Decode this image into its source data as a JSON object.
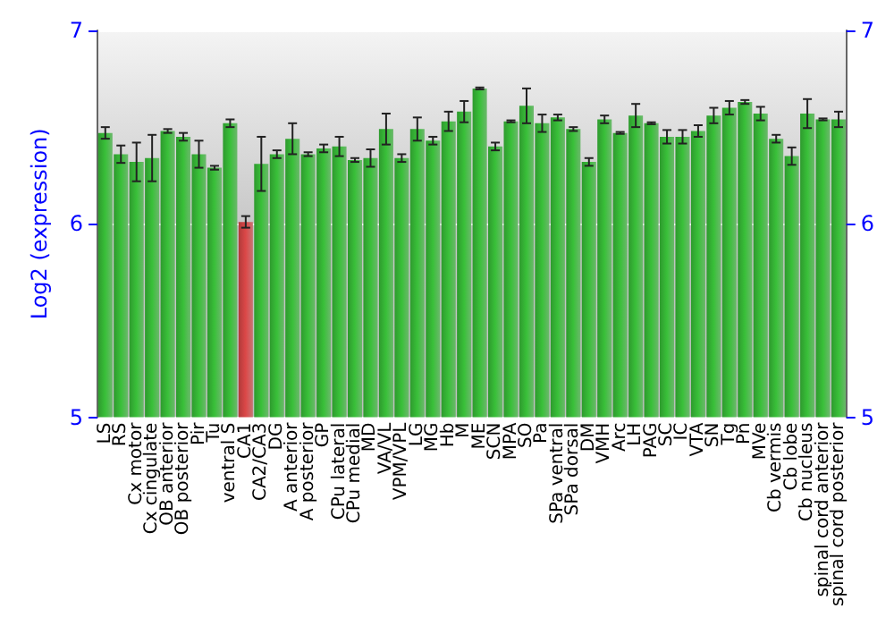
{
  "chart_data": {
    "type": "bar",
    "ylabel": "Log2 (expression)",
    "categories": [
      "LS",
      "RS",
      "Cx motor",
      "Cx cingulate",
      "OB anterior",
      "OB posterior",
      "Pir",
      "Tu",
      "ventral S",
      "CA1",
      "CA2/CA3",
      "DG",
      "A anterior",
      "A posterior",
      "GP",
      "CPu lateral",
      "CPu medial",
      "MD",
      "VA/VL",
      "VPM/VPL",
      "LG",
      "MG",
      "Hb",
      "M",
      "ME",
      "SCN",
      "MPA",
      "SO",
      "Pa",
      "SPa ventral",
      "SPa dorsal",
      "DM",
      "VMH",
      "Arc",
      "LH",
      "PAG",
      "SC",
      "IC",
      "VTA",
      "SN",
      "Tg",
      "Pn",
      "MVe",
      "Cb vermis",
      "Cb lobe",
      "Cb nucleus",
      "spinal cord anterior",
      "spinal cord posterior"
    ],
    "values": [
      6.47,
      6.36,
      6.32,
      6.34,
      6.48,
      6.45,
      6.36,
      6.29,
      6.52,
      6.01,
      6.31,
      6.36,
      6.44,
      6.36,
      6.39,
      6.4,
      6.33,
      6.34,
      6.49,
      6.34,
      6.49,
      6.43,
      6.53,
      6.58,
      6.7,
      6.4,
      6.53,
      6.61,
      6.52,
      6.55,
      6.49,
      6.32,
      6.54,
      6.47,
      6.56,
      6.52,
      6.45,
      6.45,
      6.48,
      6.56,
      6.6,
      6.63,
      6.57,
      6.44,
      6.35,
      6.57,
      6.54,
      6.54
    ],
    "errors": [
      0.03,
      0.045,
      0.1,
      0.12,
      0.01,
      0.02,
      0.07,
      0.01,
      0.02,
      0.03,
      0.14,
      0.02,
      0.08,
      0.01,
      0.02,
      0.05,
      0.01,
      0.045,
      0.08,
      0.02,
      0.06,
      0.02,
      0.05,
      0.055,
      0.005,
      0.02,
      0.005,
      0.09,
      0.045,
      0.015,
      0.01,
      0.02,
      0.02,
      0.005,
      0.06,
      0.005,
      0.035,
      0.035,
      0.03,
      0.04,
      0.035,
      0.01,
      0.035,
      0.02,
      0.045,
      0.075,
      0.005,
      0.04
    ],
    "colors": [
      "#2e9a2e",
      "#2e9a2e",
      "#2e9a2e",
      "#2e9a2e",
      "#2e9a2e",
      "#2e9a2e",
      "#2e9a2e",
      "#2e9a2e",
      "#2e9a2e",
      "#b03a3a",
      "#2e9a2e",
      "#2e9a2e",
      "#2e9a2e",
      "#2e9a2e",
      "#2e9a2e",
      "#2e9a2e",
      "#2e9a2e",
      "#2e9a2e",
      "#2e9a2e",
      "#2e9a2e",
      "#2e9a2e",
      "#2e9a2e",
      "#2e9a2e",
      "#2e9a2e",
      "#2e9a2e",
      "#2e9a2e",
      "#2e9a2e",
      "#2e9a2e",
      "#2e9a2e",
      "#2e9a2e",
      "#2e9a2e",
      "#2e9a2e",
      "#2e9a2e",
      "#2e9a2e",
      "#2e9a2e",
      "#2e9a2e",
      "#2e9a2e",
      "#2e9a2e",
      "#2e9a2e",
      "#2e9a2e",
      "#2e9a2e",
      "#2e9a2e",
      "#2e9a2e",
      "#2e9a2e",
      "#2e9a2e",
      "#2e9a2e",
      "#2e9a2e",
      "#2e9a2e"
    ],
    "ylim": [
      5,
      7
    ],
    "yticks": [
      5,
      6,
      7
    ],
    "y2lim": [
      5,
      7
    ],
    "y2ticks": [
      5,
      6,
      7
    ],
    "grid": "y"
  }
}
